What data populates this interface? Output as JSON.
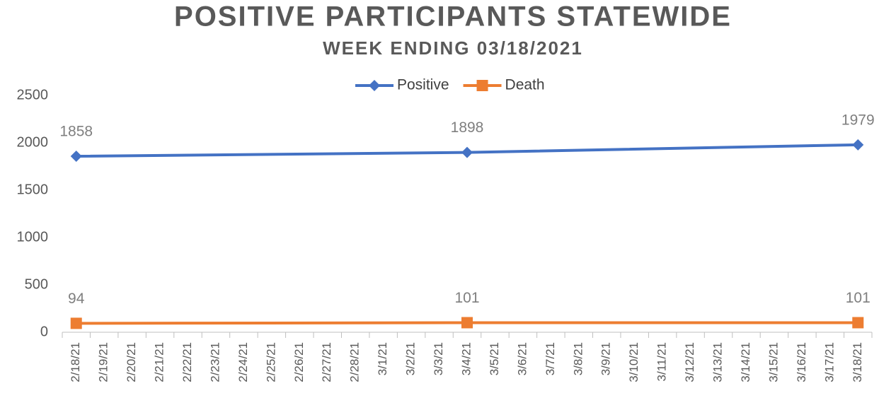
{
  "chart_data": {
    "type": "line",
    "title": "POSITIVE PARTICIPANTS STATEWIDE",
    "subtitle": "WEEK ENDING 03/18/2021",
    "categories": [
      "2/18/21",
      "2/19/21",
      "2/20/21",
      "2/21/21",
      "2/22/21",
      "2/23/21",
      "2/24/21",
      "2/25/21",
      "2/26/21",
      "2/27/21",
      "2/28/21",
      "3/1/21",
      "3/2/21",
      "3/3/21",
      "3/4/21",
      "3/5/21",
      "3/6/21",
      "3/7/21",
      "3/8/21",
      "3/9/21",
      "3/10/21",
      "3/11/21",
      "3/12/21",
      "3/13/21",
      "3/14/21",
      "3/15/21",
      "3/16/21",
      "3/17/21",
      "3/18/21"
    ],
    "series": [
      {
        "name": "Positive",
        "color": "#4472c4",
        "marker": "diamond",
        "values": [
          1858,
          null,
          null,
          null,
          null,
          null,
          null,
          null,
          null,
          null,
          null,
          null,
          null,
          null,
          1898,
          null,
          null,
          null,
          null,
          null,
          null,
          null,
          null,
          null,
          null,
          null,
          null,
          null,
          1979
        ]
      },
      {
        "name": "Death",
        "color": "#ed7d31",
        "marker": "square",
        "values": [
          94,
          null,
          null,
          null,
          null,
          null,
          null,
          null,
          null,
          null,
          null,
          null,
          null,
          null,
          101,
          null,
          null,
          null,
          null,
          null,
          null,
          null,
          null,
          null,
          null,
          null,
          null,
          null,
          101
        ]
      }
    ],
    "span_gaps": true,
    "data_labels": true,
    "ylim": [
      0,
      2500
    ],
    "yticks": [
      0,
      500,
      1000,
      1500,
      2000,
      2500
    ],
    "grid": false,
    "legend": "top"
  }
}
